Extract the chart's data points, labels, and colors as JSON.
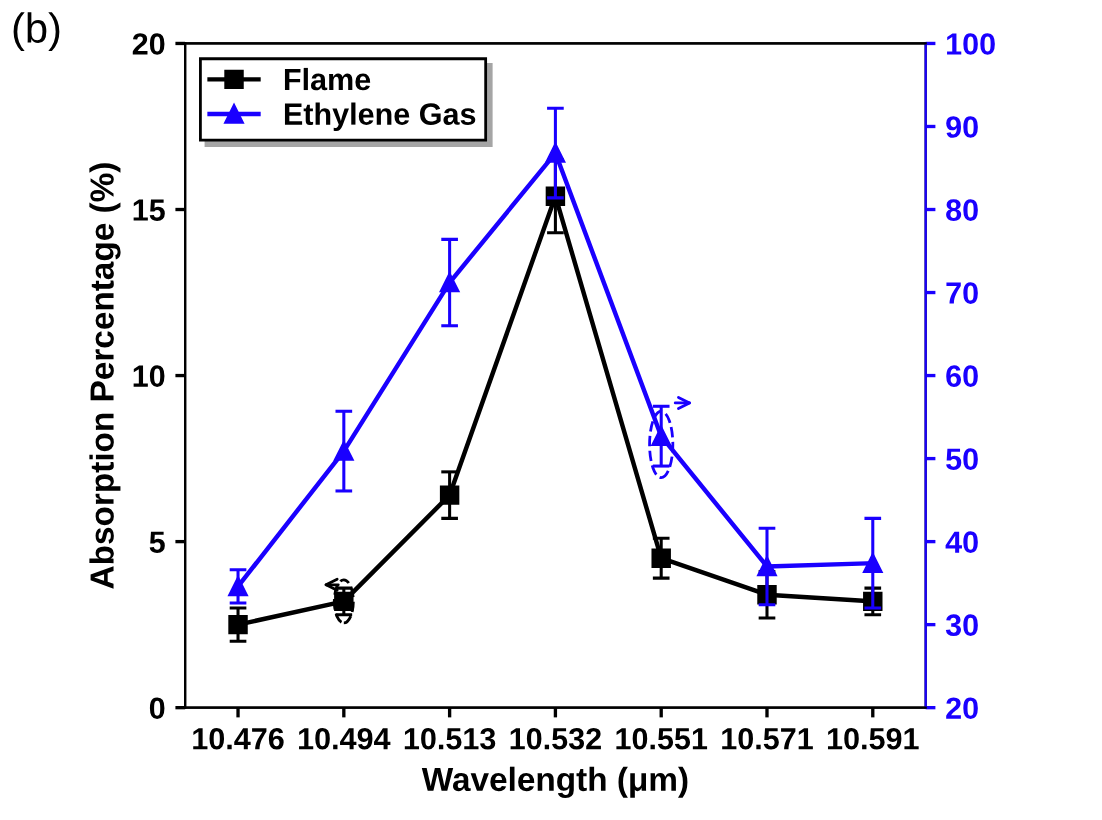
{
  "chart_data": {
    "type": "line",
    "xlabel": "Wavelength (μm)",
    "ylabel": "Absorption Percentage (%)",
    "annotations": [
      "(b)"
    ],
    "categories": [
      "10.476",
      "10.494",
      "10.513",
      "10.532",
      "10.551",
      "10.571",
      "10.591"
    ],
    "series": [
      {
        "name": "Flame",
        "color": "#000000",
        "marker": "square",
        "values": [
          2.5,
          3.2,
          6.4,
          15.4,
          4.5,
          3.4,
          3.2
        ],
        "errors": [
          0.5,
          0.4,
          0.7,
          1.1,
          0.6,
          0.7,
          0.4
        ]
      },
      {
        "name": "Ethylene Gas",
        "color": "#1a00ff",
        "marker": "triangle",
        "axis": "y2",
        "values": [
          34.6,
          50.9,
          71.2,
          86.8,
          52.7,
          37.0,
          37.4
        ],
        "errors": [
          2,
          4.8,
          5.2,
          5.4,
          3.6,
          4.6,
          5.4
        ]
      }
    ],
    "ylim": [
      0,
      20
    ],
    "yticks": [
      0,
      5,
      10,
      15,
      20
    ],
    "y2lim": [
      20,
      100
    ],
    "y2ticks": [
      20,
      30,
      40,
      50,
      60,
      70,
      80,
      90,
      100
    ],
    "legend": "top left",
    "grid": false,
    "line_style": "solid"
  }
}
